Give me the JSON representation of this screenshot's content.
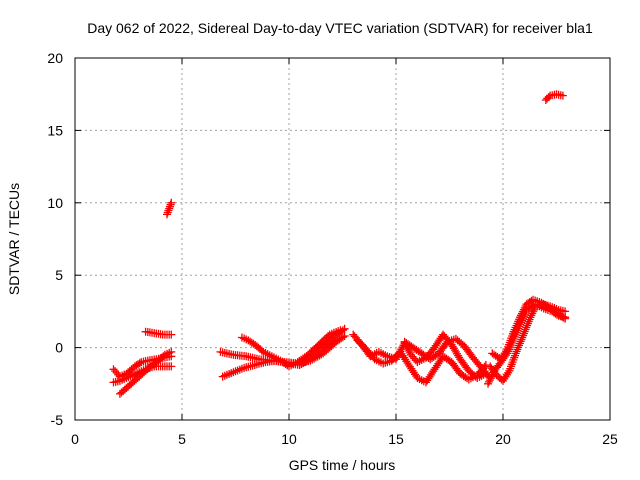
{
  "chart_data": {
    "type": "scatter",
    "title": "Day 062 of 2022, Sidereal Day-to-day VTEC variation (SDTVAR) for receiver bla1",
    "xlabel": "GPS time / hours",
    "ylabel": "SDTVAR / TECUs",
    "xlim": [
      0,
      25
    ],
    "ylim": [
      -5,
      20
    ],
    "xticks": [
      0,
      5,
      10,
      15,
      20,
      25
    ],
    "yticks": [
      -5,
      0,
      5,
      10,
      15,
      20
    ],
    "grid": true,
    "marker": "+",
    "series_color": "#ff0000",
    "segments": [
      [
        [
          1.8,
          -1.5
        ],
        [
          2.1,
          -2.0
        ],
        [
          2.4,
          -1.8
        ],
        [
          2.8,
          -1.3
        ],
        [
          3.1,
          -1.0
        ],
        [
          3.4,
          -0.9
        ],
        [
          3.8,
          -0.8
        ],
        [
          4.1,
          -0.7
        ],
        [
          4.5,
          -0.6
        ]
      ],
      [
        [
          1.8,
          -2.4
        ],
        [
          2.1,
          -2.3
        ],
        [
          2.4,
          -2.1
        ],
        [
          2.7,
          -1.9
        ],
        [
          3.0,
          -1.7
        ],
        [
          3.3,
          -1.5
        ],
        [
          3.7,
          -1.3
        ],
        [
          4.1,
          -1.3
        ],
        [
          4.5,
          -1.3
        ]
      ],
      [
        [
          2.1,
          -3.2
        ],
        [
          2.4,
          -2.8
        ],
        [
          2.7,
          -2.4
        ],
        [
          3.0,
          -2.0
        ],
        [
          3.3,
          -1.6
        ],
        [
          3.6,
          -1.2
        ],
        [
          3.9,
          -0.9
        ],
        [
          4.2,
          -0.5
        ],
        [
          4.5,
          -0.3
        ]
      ],
      [
        [
          3.3,
          1.1
        ],
        [
          3.7,
          1.0
        ],
        [
          4.1,
          0.9
        ],
        [
          4.5,
          0.9
        ]
      ],
      [
        [
          4.3,
          9.2
        ],
        [
          4.4,
          9.6
        ],
        [
          4.5,
          10.0
        ]
      ],
      [
        [
          6.8,
          -0.3
        ],
        [
          7.4,
          -0.5
        ],
        [
          8.0,
          -0.6
        ],
        [
          8.6,
          -0.8
        ],
        [
          9.2,
          -0.9
        ],
        [
          9.8,
          -1.0
        ],
        [
          10.4,
          -1.1
        ],
        [
          11.0,
          -0.9
        ],
        [
          11.6,
          -0.4
        ],
        [
          12.2,
          0.4
        ],
        [
          12.6,
          0.8
        ]
      ],
      [
        [
          6.9,
          -2.0
        ],
        [
          7.4,
          -1.7
        ],
        [
          7.9,
          -1.4
        ],
        [
          8.4,
          -1.2
        ],
        [
          8.9,
          -1.0
        ],
        [
          9.4,
          -0.9
        ],
        [
          10.0,
          -1.1
        ],
        [
          10.5,
          -1.2
        ],
        [
          11.0,
          -0.8
        ],
        [
          11.6,
          0.0
        ],
        [
          12.1,
          0.7
        ],
        [
          12.6,
          1.3
        ]
      ],
      [
        [
          7.8,
          0.7
        ],
        [
          8.1,
          0.5
        ],
        [
          8.5,
          0.1
        ],
        [
          8.8,
          -0.3
        ],
        [
          9.2,
          -0.6
        ],
        [
          9.6,
          -0.9
        ],
        [
          10.0,
          -1.3
        ],
        [
          10.4,
          -1.0
        ],
        [
          10.9,
          -0.5
        ],
        [
          11.4,
          0.2
        ],
        [
          11.9,
          0.9
        ],
        [
          12.4,
          1.2
        ]
      ],
      [
        [
          13.0,
          0.9
        ],
        [
          13.4,
          0.2
        ],
        [
          13.8,
          -0.6
        ],
        [
          14.2,
          -0.3
        ],
        [
          14.6,
          -0.6
        ],
        [
          15.0,
          -0.8
        ],
        [
          15.4,
          0.3
        ],
        [
          15.7,
          -0.5
        ],
        [
          16.0,
          -1.0
        ],
        [
          16.4,
          -0.7
        ],
        [
          16.8,
          0.0
        ],
        [
          17.2,
          0.9
        ],
        [
          17.6,
          0.2
        ],
        [
          18.0,
          -0.8
        ],
        [
          18.4,
          -1.6
        ],
        [
          18.8,
          -2.1
        ],
        [
          19.2,
          -1.8
        ]
      ],
      [
        [
          13.2,
          0.5
        ],
        [
          13.6,
          -0.1
        ],
        [
          14.0,
          -0.8
        ],
        [
          14.4,
          -1.1
        ],
        [
          14.8,
          -0.9
        ],
        [
          15.2,
          -0.3
        ],
        [
          15.6,
          -1.2
        ],
        [
          16.0,
          -2.1
        ],
        [
          16.4,
          -2.4
        ],
        [
          16.8,
          -1.5
        ],
        [
          17.2,
          -0.6
        ],
        [
          17.6,
          -1.0
        ],
        [
          18.0,
          -1.8
        ],
        [
          18.4,
          -2.2
        ],
        [
          18.8,
          -1.9
        ],
        [
          19.2,
          -1.2
        ]
      ],
      [
        [
          15.4,
          0.4
        ],
        [
          15.8,
          0.0
        ],
        [
          16.2,
          -0.4
        ],
        [
          16.6,
          -0.8
        ],
        [
          17.0,
          -0.4
        ],
        [
          17.4,
          0.4
        ],
        [
          17.8,
          0.6
        ],
        [
          18.2,
          0.1
        ],
        [
          18.6,
          -0.7
        ],
        [
          19.0,
          -1.4
        ],
        [
          19.4,
          -2.1
        ]
      ],
      [
        [
          19.3,
          -2.5
        ],
        [
          19.6,
          -1.6
        ],
        [
          19.9,
          -1.0
        ],
        [
          20.2,
          -0.4
        ],
        [
          20.5,
          0.6
        ],
        [
          20.8,
          1.6
        ],
        [
          21.1,
          2.6
        ],
        [
          21.5,
          3.0
        ],
        [
          21.9,
          2.7
        ],
        [
          22.3,
          2.5
        ],
        [
          22.6,
          2.2
        ],
        [
          22.9,
          2.1
        ]
      ],
      [
        [
          19.4,
          -1.3
        ],
        [
          19.7,
          -1.9
        ],
        [
          20.0,
          -2.3
        ],
        [
          20.3,
          -1.6
        ],
        [
          20.6,
          -0.4
        ],
        [
          20.9,
          0.7
        ],
        [
          21.2,
          1.8
        ],
        [
          21.5,
          2.8
        ],
        [
          21.9,
          3.0
        ],
        [
          22.3,
          2.8
        ],
        [
          22.6,
          2.6
        ],
        [
          22.9,
          2.5
        ]
      ],
      [
        [
          19.5,
          -0.4
        ],
        [
          19.9,
          -0.8
        ],
        [
          20.2,
          -0.1
        ],
        [
          20.5,
          1.1
        ],
        [
          20.8,
          2.1
        ],
        [
          21.1,
          3.0
        ],
        [
          21.4,
          3.3
        ],
        [
          21.8,
          3.1
        ],
        [
          22.2,
          2.7
        ],
        [
          22.6,
          2.3
        ],
        [
          22.9,
          2.0
        ]
      ],
      [
        [
          22.0,
          17.1
        ],
        [
          22.2,
          17.4
        ],
        [
          22.5,
          17.5
        ],
        [
          22.8,
          17.4
        ]
      ]
    ]
  }
}
